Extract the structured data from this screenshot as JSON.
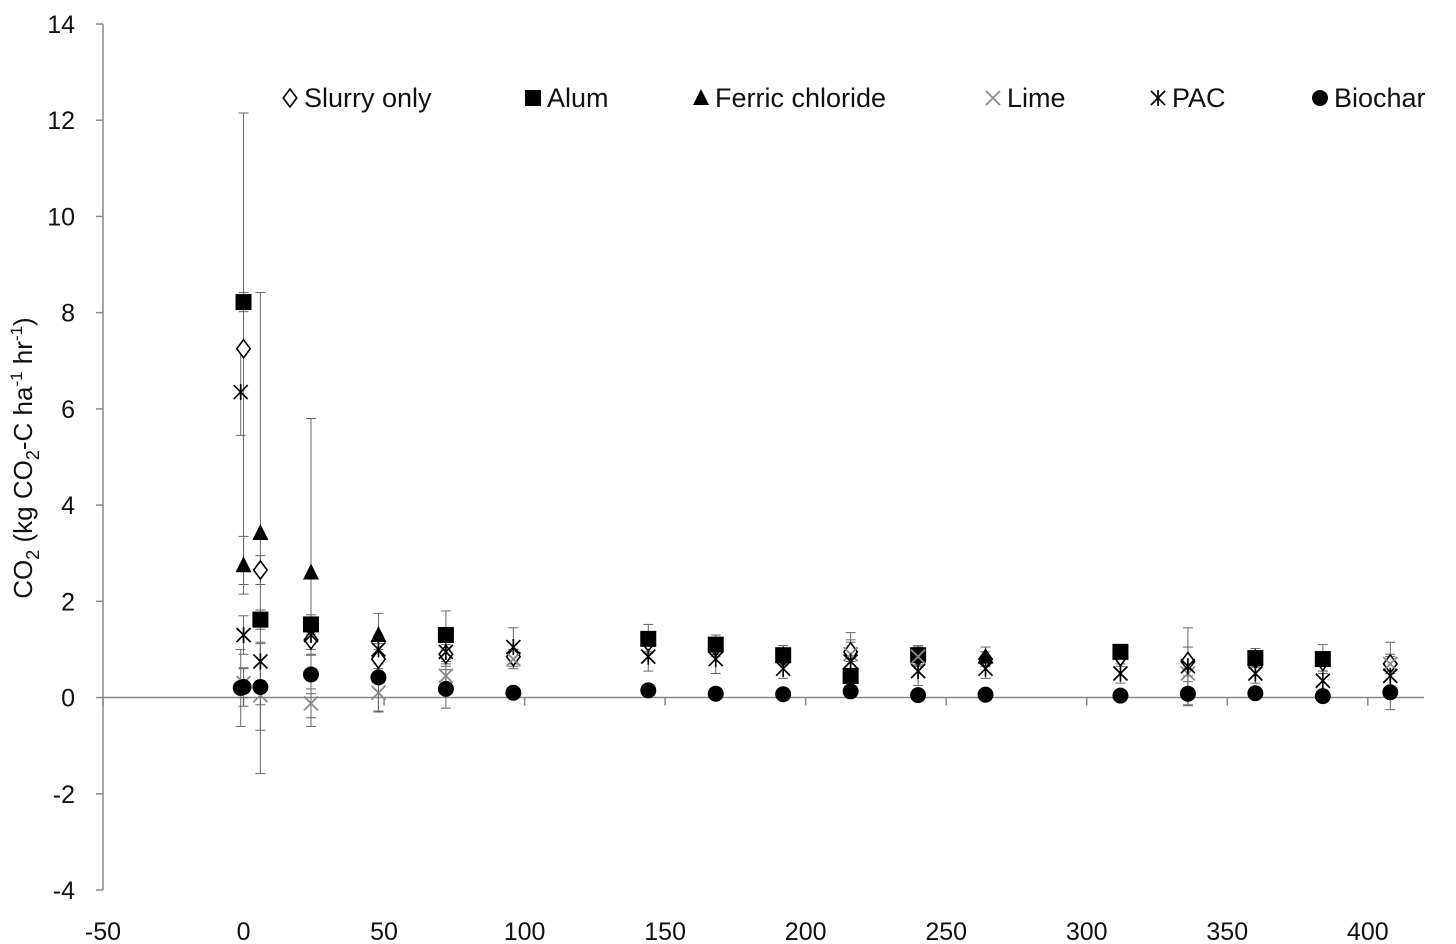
{
  "chart_data": {
    "type": "scatter",
    "title": "",
    "ylabel": {
      "prefix": "CO",
      "sub1": "2",
      "mid": " (kg CO",
      "sub2": "2",
      "mid2": "-C ha",
      "sup1": "-1",
      "mid3": " hr",
      "sup2": "-1",
      "suffix": ")"
    },
    "xlabel": "",
    "xlim": [
      -50,
      420
    ],
    "ylim": [
      -4,
      14
    ],
    "xticks": [
      "-50",
      "0",
      "50",
      "100",
      "150",
      "200",
      "250",
      "300",
      "350",
      "400"
    ],
    "yticks": [
      "-4",
      "-2",
      "0",
      "2",
      "4",
      "6",
      "8",
      "10",
      "12",
      "14"
    ],
    "grid": false,
    "legend_position": "top",
    "error_bars": true,
    "series": [
      {
        "name": "Slurry only",
        "marker": "diamond-open",
        "points": [
          {
            "x": 0,
            "y": 7.25,
            "err": 4.9
          },
          {
            "x": 6,
            "y": 2.65,
            "err": 0.3
          },
          {
            "x": 24,
            "y": 1.2,
            "err": 0.3
          },
          {
            "x": 48,
            "y": 0.8,
            "err": 0.2
          },
          {
            "x": 72,
            "y": 0.9,
            "err": 0.2
          },
          {
            "x": 96,
            "y": 0.85,
            "err": 0.15
          },
          {
            "x": 144,
            "y": 1.15,
            "err": 0.2
          },
          {
            "x": 168,
            "y": 1.05,
            "err": 0.2
          },
          {
            "x": 192,
            "y": 0.85,
            "err": 0.15
          },
          {
            "x": 216,
            "y": 0.95,
            "err": 0.2
          },
          {
            "x": 240,
            "y": 0.85,
            "err": 0.2
          },
          {
            "x": 264,
            "y": 0.8,
            "err": 0.15
          },
          {
            "x": 312,
            "y": 0.85,
            "err": 0.2
          },
          {
            "x": 336,
            "y": 0.75,
            "err": 0.3
          },
          {
            "x": 360,
            "y": 0.8,
            "err": 0.15
          },
          {
            "x": 384,
            "y": 0.75,
            "err": 0.2
          },
          {
            "x": 408,
            "y": 0.7,
            "err": 0.15
          }
        ]
      },
      {
        "name": "Alum",
        "marker": "square-filled",
        "points": [
          {
            "x": 0,
            "y": 8.22,
            "err": 0.2
          },
          {
            "x": 6,
            "y": 1.62,
            "err": 0.2
          },
          {
            "x": 24,
            "y": 1.52,
            "err": 0.2
          },
          {
            "x": 72,
            "y": 1.3,
            "err": 0.5
          },
          {
            "x": 144,
            "y": 1.22,
            "err": 0.3
          },
          {
            "x": 168,
            "y": 1.1,
            "err": 0.2
          },
          {
            "x": 192,
            "y": 0.88,
            "err": 0.2
          },
          {
            "x": 216,
            "y": 0.45,
            "err": 0.15
          },
          {
            "x": 240,
            "y": 0.88,
            "err": 0.2
          },
          {
            "x": 312,
            "y": 0.95,
            "err": 0.15
          },
          {
            "x": 360,
            "y": 0.82,
            "err": 0.2
          },
          {
            "x": 384,
            "y": 0.8,
            "err": 0.3
          }
        ]
      },
      {
        "name": "Ferric chloride",
        "marker": "triangle-filled",
        "points": [
          {
            "x": 0,
            "y": 2.75,
            "err": 0.6
          },
          {
            "x": 6,
            "y": 3.42,
            "err": 5.0
          },
          {
            "x": 24,
            "y": 2.6,
            "err": 3.2
          },
          {
            "x": 48,
            "y": 1.3,
            "err": 0.45
          },
          {
            "x": 264,
            "y": 0.85,
            "err": 0.2
          }
        ]
      },
      {
        "name": "Lime",
        "marker": "x-gray",
        "points": [
          {
            "x": 0,
            "y": 0.3,
            "err": 0.3
          },
          {
            "x": 6,
            "y": 0.05,
            "err": 0.2
          },
          {
            "x": 24,
            "y": -0.12,
            "err": 0.3
          },
          {
            "x": 48,
            "y": 0.1,
            "err": 0.4
          },
          {
            "x": 72,
            "y": 0.45,
            "err": 0.3
          },
          {
            "x": 96,
            "y": 0.8,
            "err": 0.2
          },
          {
            "x": 216,
            "y": 0.9,
            "err": 0.3
          },
          {
            "x": 240,
            "y": 0.85,
            "err": 0.2
          },
          {
            "x": 336,
            "y": 0.5,
            "err": 0.3
          },
          {
            "x": 408,
            "y": 0.7,
            "err": 0.2
          }
        ]
      },
      {
        "name": "PAC",
        "marker": "asterisk",
        "points": [
          {
            "x": -1,
            "y": 6.35,
            "err": 0.9
          },
          {
            "x": 0,
            "y": 1.3,
            "err": 0.4
          },
          {
            "x": 6,
            "y": 0.75,
            "err": 0.4
          },
          {
            "x": 24,
            "y": 1.3,
            "err": 0.3
          },
          {
            "x": 48,
            "y": 1.0,
            "err": 0.3
          },
          {
            "x": 72,
            "y": 0.95,
            "err": 0.3
          },
          {
            "x": 96,
            "y": 1.05,
            "err": 0.4
          },
          {
            "x": 144,
            "y": 0.85,
            "err": 0.3
          },
          {
            "x": 168,
            "y": 0.8,
            "err": 0.3
          },
          {
            "x": 192,
            "y": 0.6,
            "err": 0.2
          },
          {
            "x": 216,
            "y": 0.75,
            "err": 0.6
          },
          {
            "x": 240,
            "y": 0.55,
            "err": 0.3
          },
          {
            "x": 264,
            "y": 0.6,
            "err": 0.2
          },
          {
            "x": 312,
            "y": 0.5,
            "err": 0.2
          },
          {
            "x": 336,
            "y": 0.65,
            "err": 0.8
          },
          {
            "x": 360,
            "y": 0.5,
            "err": 0.2
          },
          {
            "x": 384,
            "y": 0.35,
            "err": 0.2
          },
          {
            "x": 408,
            "y": 0.45,
            "err": 0.7
          }
        ]
      },
      {
        "name": "Biochar",
        "marker": "circle-filled",
        "points": [
          {
            "x": -1,
            "y": 0.2,
            "err": 0.8
          },
          {
            "x": 0,
            "y": 0.22,
            "err": 0.4
          },
          {
            "x": 6,
            "y": 0.22,
            "err": 0.9
          },
          {
            "x": 24,
            "y": 0.48,
            "err": 0.4
          },
          {
            "x": 48,
            "y": 0.42,
            "err": 0.7
          },
          {
            "x": 72,
            "y": 0.18,
            "err": 0.4
          },
          {
            "x": 96,
            "y": 0.1,
            "err": 0.1
          },
          {
            "x": 144,
            "y": 0.15,
            "err": 0.1
          },
          {
            "x": 168,
            "y": 0.08,
            "err": 0.05
          },
          {
            "x": 192,
            "y": 0.07,
            "err": 0.05
          },
          {
            "x": 216,
            "y": 0.13,
            "err": 0.05
          },
          {
            "x": 240,
            "y": 0.05,
            "err": 0.05
          },
          {
            "x": 264,
            "y": 0.06,
            "err": 0.05
          },
          {
            "x": 312,
            "y": 0.04,
            "err": 0.05
          },
          {
            "x": 336,
            "y": 0.08,
            "err": 0.25
          },
          {
            "x": 360,
            "y": 0.09,
            "err": 0.05
          },
          {
            "x": 384,
            "y": 0.03,
            "err": 0.05
          },
          {
            "x": 408,
            "y": 0.11,
            "err": 0.1
          }
        ]
      }
    ]
  }
}
